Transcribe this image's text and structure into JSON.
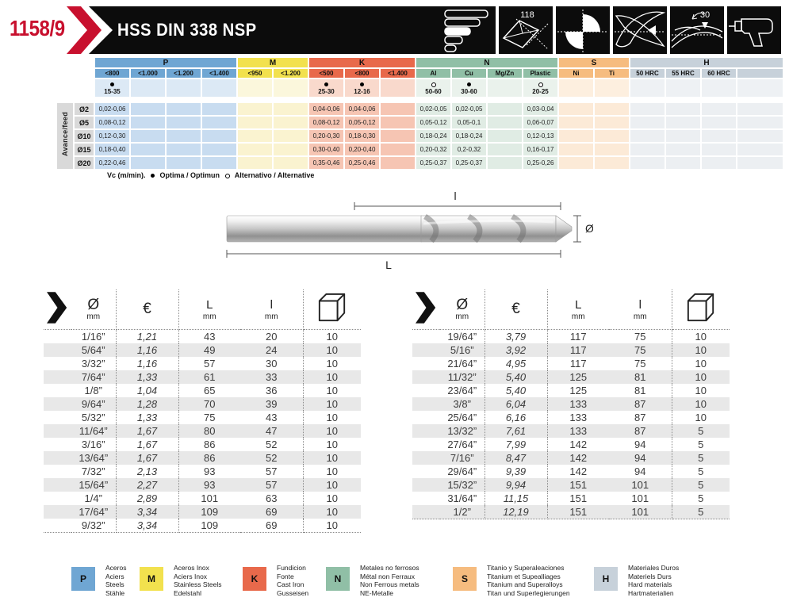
{
  "header": {
    "catalog_number": "1158/9",
    "title": "HSS DIN 338 NSP",
    "point_angle": "118",
    "helix_angle": "30"
  },
  "speed_table": {
    "axis_label": "Avance/feed",
    "sections": [
      {
        "key": "P",
        "main": "#6FA6D3",
        "light": "#DCE9F5",
        "mid": "#C8DCF0",
        "columns": [
          "<800",
          "<1.000",
          "<1.200",
          "<1.400"
        ]
      },
      {
        "key": "M",
        "main": "#F2E14E",
        "light": "#FBF7DC",
        "mid": "#FAF3D0",
        "columns": [
          "<950",
          "<1.200"
        ]
      },
      {
        "key": "K",
        "main": "#E8694B",
        "light": "#F9D9CC",
        "mid": "#F6C5B3",
        "columns": [
          "<500",
          "<800",
          "<1.400"
        ]
      },
      {
        "key": "N",
        "main": "#90BFA6",
        "light": "#EAF2EC",
        "mid": "#E0ECE4",
        "columns": [
          "Al",
          "Cu",
          "Mg/Zn",
          "Plastic"
        ]
      },
      {
        "key": "S",
        "main": "#F6BC7F",
        "light": "#FDEFDF",
        "mid": "#FCEAD7",
        "columns": [
          "Ni",
          "Ti"
        ]
      },
      {
        "key": "H",
        "main": "#C7D1DA",
        "light": "#EEF1F4",
        "mid": "#ECEFF2",
        "columns": [
          "50 HRC",
          "55 HRC",
          "60 HRC",
          ""
        ]
      }
    ],
    "vc_row": [
      {
        "symbol": "optimal",
        "value": "15-35"
      },
      null,
      null,
      null,
      null,
      null,
      {
        "symbol": "optimal",
        "value": "25-30"
      },
      {
        "symbol": "optimal",
        "value": "12-16"
      },
      null,
      {
        "symbol": "alternative",
        "value": "50-60"
      },
      {
        "symbol": "optimal",
        "value": "30-60"
      },
      null,
      {
        "symbol": "alternative",
        "value": "20-25"
      },
      null,
      null,
      null,
      null,
      null,
      null
    ],
    "rows": [
      {
        "label": "Ø2",
        "values": [
          "0,02-0,06",
          "",
          "",
          "",
          "",
          "",
          "0,04-0,06",
          "0,04-0,06",
          "",
          "0,02-0,05",
          "0,02-0,05",
          "",
          "0,03-0,04",
          "",
          "",
          "",
          "",
          "",
          ""
        ]
      },
      {
        "label": "Ø5",
        "values": [
          "0,08-0,12",
          "",
          "",
          "",
          "",
          "",
          "0,08-0,12",
          "0,05-0,12",
          "",
          "0,05-0,12",
          "0,05-0,1",
          "",
          "0,06-0,07",
          "",
          "",
          "",
          "",
          "",
          ""
        ]
      },
      {
        "label": "Ø10",
        "values": [
          "0,12-0,30",
          "",
          "",
          "",
          "",
          "",
          "0,20-0,30",
          "0,18-0,30",
          "",
          "0,18-0,24",
          "0,18-0,24",
          "",
          "0,12-0,13",
          "",
          "",
          "",
          "",
          "",
          ""
        ]
      },
      {
        "label": "Ø15",
        "values": [
          "0,18-0,40",
          "",
          "",
          "",
          "",
          "",
          "0,30-0,40",
          "0,20-0,40",
          "",
          "0,20-0,32",
          "0,2-0,32",
          "",
          "0,16-0,17",
          "",
          "",
          "",
          "",
          "",
          ""
        ]
      },
      {
        "label": "Ø20",
        "values": [
          "0,22-0,46",
          "",
          "",
          "",
          "",
          "",
          "0,35-0,46",
          "0,25-0,46",
          "",
          "0,25-0,37",
          "0,25-0,37",
          "",
          "0,25-0,26",
          "",
          "",
          "",
          "",
          "",
          ""
        ]
      }
    ],
    "footnote": {
      "prefix": "Vc (m/min).",
      "optimal": "Optima / Optimun",
      "alternative": "Alternativo / Alternative"
    }
  },
  "diagram": {
    "flute_label": "l",
    "total_label": "L",
    "diameter_label": "Ø"
  },
  "parts_header": {
    "diameter_symbol": "Ø",
    "diameter_unit": "mm",
    "price": "€",
    "total_length": "L",
    "total_unit": "mm",
    "flute_length": "l",
    "flute_unit": "mm"
  },
  "parts_tables": [
    {
      "rows": [
        [
          "1/16”",
          "1,21",
          "43",
          "20",
          "10"
        ],
        [
          "5/64”",
          "1,16",
          "49",
          "24",
          "10"
        ],
        [
          "3/32”",
          "1,16",
          "57",
          "30",
          "10"
        ],
        [
          "7/64”",
          "1,33",
          "61",
          "33",
          "10"
        ],
        [
          "1/8”",
          "1,04",
          "65",
          "36",
          "10"
        ],
        [
          "9/64”",
          "1,28",
          "70",
          "39",
          "10"
        ],
        [
          "5/32”",
          "1,33",
          "75",
          "43",
          "10"
        ],
        [
          "11/64”",
          "1,67",
          "80",
          "47",
          "10"
        ],
        [
          "3/16”",
          "1,67",
          "86",
          "52",
          "10"
        ],
        [
          "13/64”",
          "1,67",
          "86",
          "52",
          "10"
        ],
        [
          "7/32”",
          "2,13",
          "93",
          "57",
          "10"
        ],
        [
          "15/64”",
          "2,27",
          "93",
          "57",
          "10"
        ],
        [
          "1/4”",
          "2,89",
          "101",
          "63",
          "10"
        ],
        [
          "17/64”",
          "3,34",
          "109",
          "69",
          "10"
        ],
        [
          "9/32”",
          "3,34",
          "109",
          "69",
          "10"
        ]
      ]
    },
    {
      "rows": [
        [
          "19/64”",
          "3,79",
          "117",
          "75",
          "10"
        ],
        [
          "5/16”",
          "3,92",
          "117",
          "75",
          "10"
        ],
        [
          "21/64”",
          "4,95",
          "117",
          "75",
          "10"
        ],
        [
          "11/32”",
          "5,40",
          "125",
          "81",
          "10"
        ],
        [
          "23/64”",
          "5,40",
          "125",
          "81",
          "10"
        ],
        [
          "3/8”",
          "6,04",
          "133",
          "87",
          "10"
        ],
        [
          "25/64”",
          "6,16",
          "133",
          "87",
          "10"
        ],
        [
          "13/32”",
          "7,61",
          "133",
          "87",
          "5"
        ],
        [
          "27/64”",
          "7,99",
          "142",
          "94",
          "5"
        ],
        [
          "7/16”",
          "8,47",
          "142",
          "94",
          "5"
        ],
        [
          "29/64”",
          "9,39",
          "142",
          "94",
          "5"
        ],
        [
          "15/32”",
          "9,94",
          "151",
          "101",
          "5"
        ],
        [
          "31/64”",
          "11,15",
          "151",
          "101",
          "5"
        ],
        [
          "1/2”",
          "12,19",
          "151",
          "101",
          "5"
        ]
      ]
    }
  ],
  "legend": [
    {
      "key": "P",
      "color": "#6FA6D3",
      "lines": [
        "Aceros",
        "Aciers",
        "Steels",
        "Stähle"
      ]
    },
    {
      "key": "M",
      "color": "#F2E14E",
      "lines": [
        "Aceros Inox",
        "Aciers Inox",
        "Stainless Steels",
        "Edelstahl"
      ]
    },
    {
      "key": "K",
      "color": "#E8694B",
      "lines": [
        "Fundicion",
        "Fonte",
        "Cast Iron",
        "Gusseisen"
      ]
    },
    {
      "key": "N",
      "color": "#90BFA6",
      "lines": [
        "Metales no ferrosos",
        "Métal non Ferraux",
        "Non Ferrous metals",
        "NE-Metalle"
      ]
    },
    {
      "key": "S",
      "color": "#F6BC7F",
      "lines": [
        "Titanio y Superaleaciones",
        "Titanium et Supealliages",
        "Titanium and Superalloys",
        "Titan und Superlegierungen"
      ]
    },
    {
      "key": "H",
      "color": "#C7D1DA",
      "lines": [
        "Materiales Duros",
        "Materiels Durs",
        "Hard materials",
        "Hartmaterialien"
      ]
    }
  ]
}
